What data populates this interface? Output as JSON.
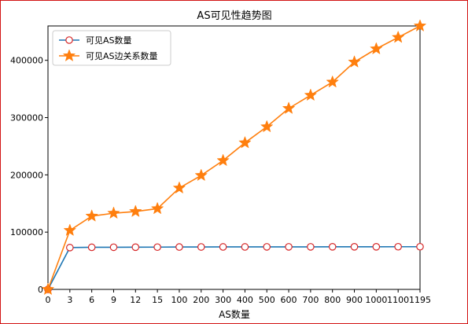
{
  "colors": {
    "border": "#d21414",
    "series1": "#1f77b4",
    "series2": "#ff7f0e"
  },
  "chart_data": {
    "type": "line",
    "title": "AS可见性趋势图",
    "xlabel": "AS数量",
    "ylabel": "",
    "categories": [
      "0",
      "3",
      "6",
      "9",
      "12",
      "15",
      "100",
      "200",
      "300",
      "400",
      "500",
      "600",
      "700",
      "800",
      "900",
      "1000",
      "1100",
      "1195"
    ],
    "ylim": [
      0,
      460000
    ],
    "yticks": [
      0,
      100000,
      200000,
      300000,
      400000
    ],
    "ytick_labels": [
      "0",
      "100000",
      "200000",
      "300000",
      "400000"
    ],
    "grid": false,
    "legend": "top-left",
    "series": [
      {
        "name": "可见AS数量",
        "marker": "circle-open",
        "color": "#1f77b4",
        "values": [
          0,
          73000,
          73500,
          73600,
          73700,
          73800,
          74000,
          74100,
          74200,
          74200,
          74300,
          74300,
          74300,
          74400,
          74400,
          74400,
          74500,
          74500
        ]
      },
      {
        "name": "可见AS边关系数量",
        "marker": "star",
        "color": "#ff7f0e",
        "values": [
          0,
          103000,
          128000,
          133000,
          136000,
          141000,
          177000,
          199000,
          225000,
          256000,
          284000,
          316000,
          339000,
          362000,
          397000,
          420000,
          440000,
          460000
        ]
      }
    ]
  }
}
